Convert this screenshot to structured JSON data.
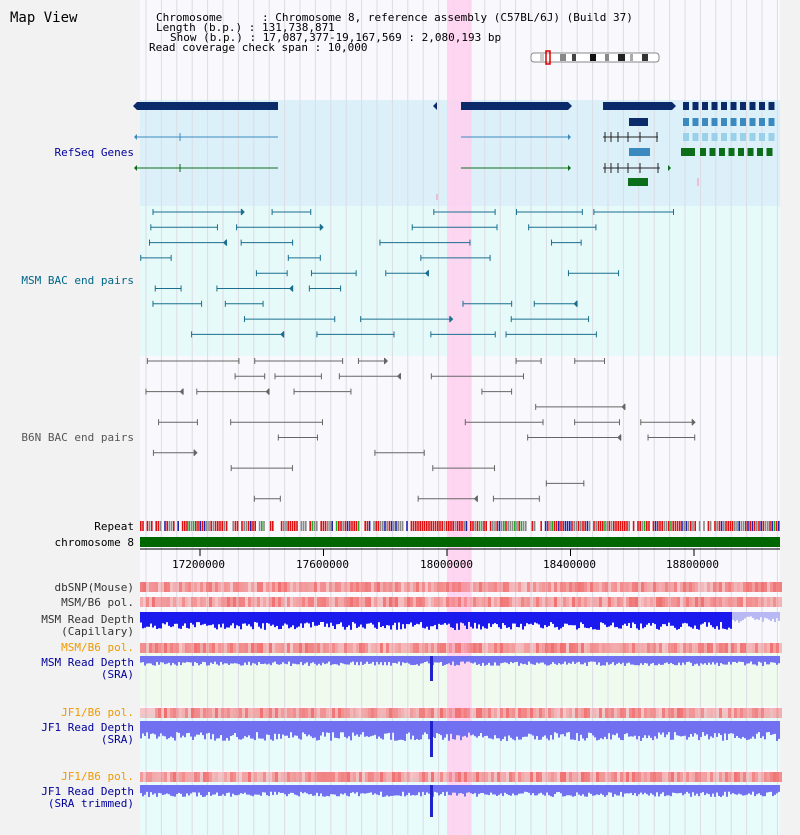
{
  "title": "Map View",
  "info": {
    "chromosome": "Chromosome      : Chromosome 8, reference assembly (C57BL/6J) (Build 37)",
    "length": "Length (b.p.) : 131,738,871",
    "show": "Show (b.p.) : 17,087,377-19,167,569 : 2,080,193 bp",
    "coverage": "Read coverage check span : 10,000"
  },
  "tracks": {
    "refseq": {
      "label": "RefSeq Genes",
      "color": "#000099"
    },
    "msm_bac": {
      "label": "MSM BAC end pairs",
      "color": "#006688"
    },
    "b6n_bac": {
      "label": "B6N BAC end pairs",
      "color": "#555555"
    },
    "repeat": {
      "label": "Repeat",
      "color": "#000000"
    },
    "chrom": {
      "label": "chromosome 8",
      "color": "#000000"
    },
    "dbsnp": {
      "label": "dbSNP(Mouse)",
      "color": "#333333"
    },
    "msm_pol": {
      "label": "MSM/B6 pol.",
      "color": "#333333"
    },
    "msm_cap": {
      "label": "MSM Read Depth\n(Capillary)",
      "color": "#333333"
    },
    "msm_pol2": {
      "label": "MSM/B6 pol.",
      "color": "#ee9900"
    },
    "msm_sra": {
      "label": "MSM Read Depth\n(SRA)",
      "color": "#000099"
    },
    "jf1_pol": {
      "label": "JF1/B6 pol.",
      "color": "#ee9900"
    },
    "jf1_sra": {
      "label": "JF1 Read Depth\n(SRA)",
      "color": "#000099"
    },
    "jf1_pol2": {
      "label": "JF1/B6 pol.",
      "color": "#ee9900"
    },
    "jf1_trim": {
      "label": "JF1 Read Depth\n(SRA trimmed)",
      "color": "#000099"
    }
  },
  "axis": {
    "ticks": [
      "17200000",
      "17600000",
      "18000000",
      "18400000",
      "18800000"
    ],
    "start": 17087377,
    "end": 19167569
  },
  "highlight_region": [
    18000000,
    18080000
  ],
  "colors": {
    "refseq_dark": "#0a2a6a",
    "refseq_mid": "#3a8ac0",
    "refseq_green": "#0d6e1a",
    "msm_bac": "#1a6f8e",
    "b6n_bac": "#666666",
    "chrom_bar": "#006600",
    "snp_red": "#f07070",
    "depth_blue": "#1a1aee",
    "depth_violet": "#7070f0",
    "highlight": "#ffd0ee"
  }
}
